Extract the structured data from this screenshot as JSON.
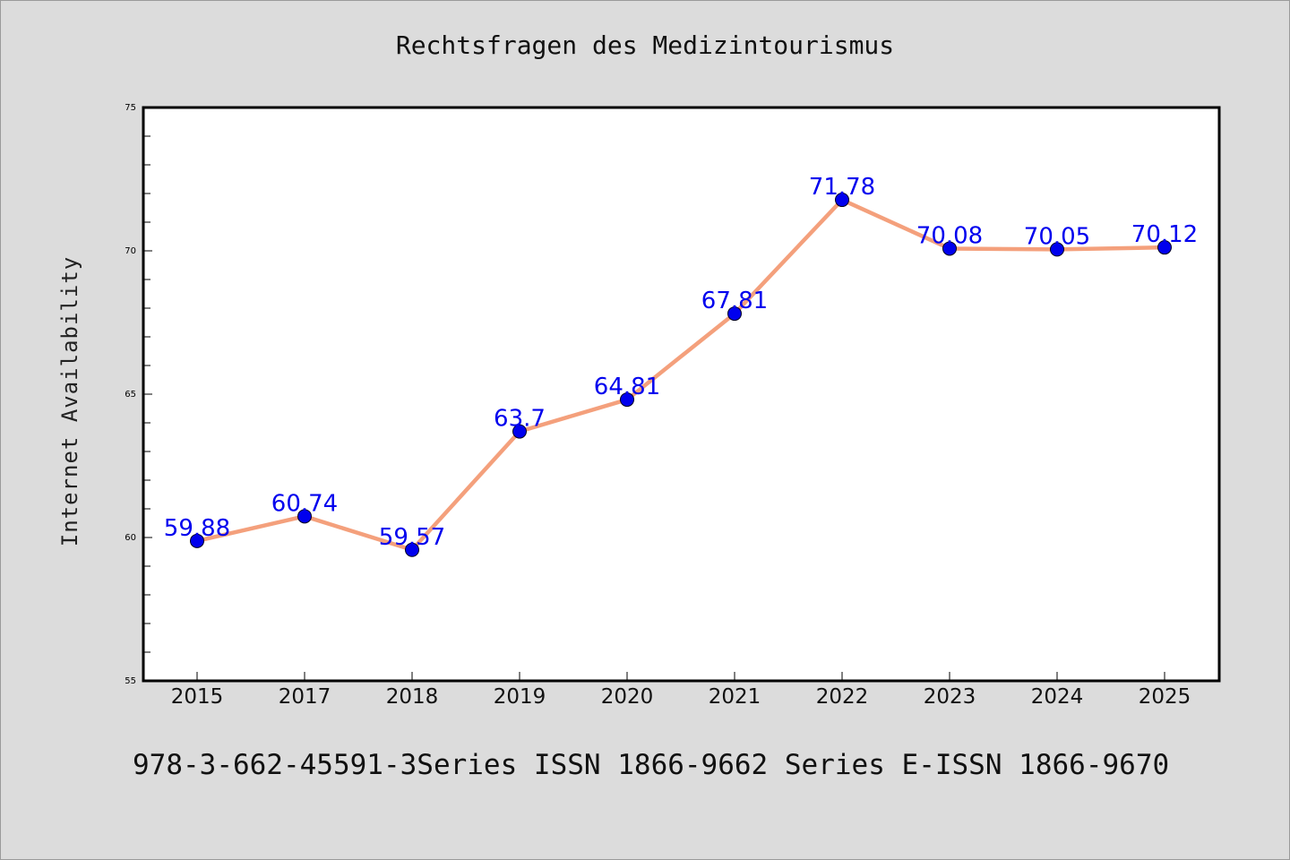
{
  "chart_data": {
    "type": "line",
    "title": "Rechtsfragen des Medizintourismus",
    "xlabel": "",
    "ylabel": "Internet Availability",
    "ylim": [
      55,
      75
    ],
    "yticks": [
      55,
      60,
      65,
      70,
      75
    ],
    "categories": [
      "2015",
      "2017",
      "2018",
      "2019",
      "2020",
      "2021",
      "2022",
      "2023",
      "2024",
      "2025"
    ],
    "series": [
      {
        "values": [
          59.88,
          60.74,
          59.57,
          63.7,
          64.81,
          67.81,
          71.78,
          70.08,
          70.05,
          70.12
        ],
        "labels": [
          "59.88",
          "60.74",
          "59.57",
          "63.7",
          "64.81",
          "67.81",
          "71.78",
          "70.08",
          "70.05",
          "70.12"
        ],
        "line_color": "#f4a07c",
        "marker_color": "#0000ee",
        "label_color": "#0000ee"
      }
    ],
    "grid": false,
    "legend": "none"
  },
  "footer": "978-3-662-45591-3Series ISSN 1866-9662 Series E-ISSN 1866-9670"
}
